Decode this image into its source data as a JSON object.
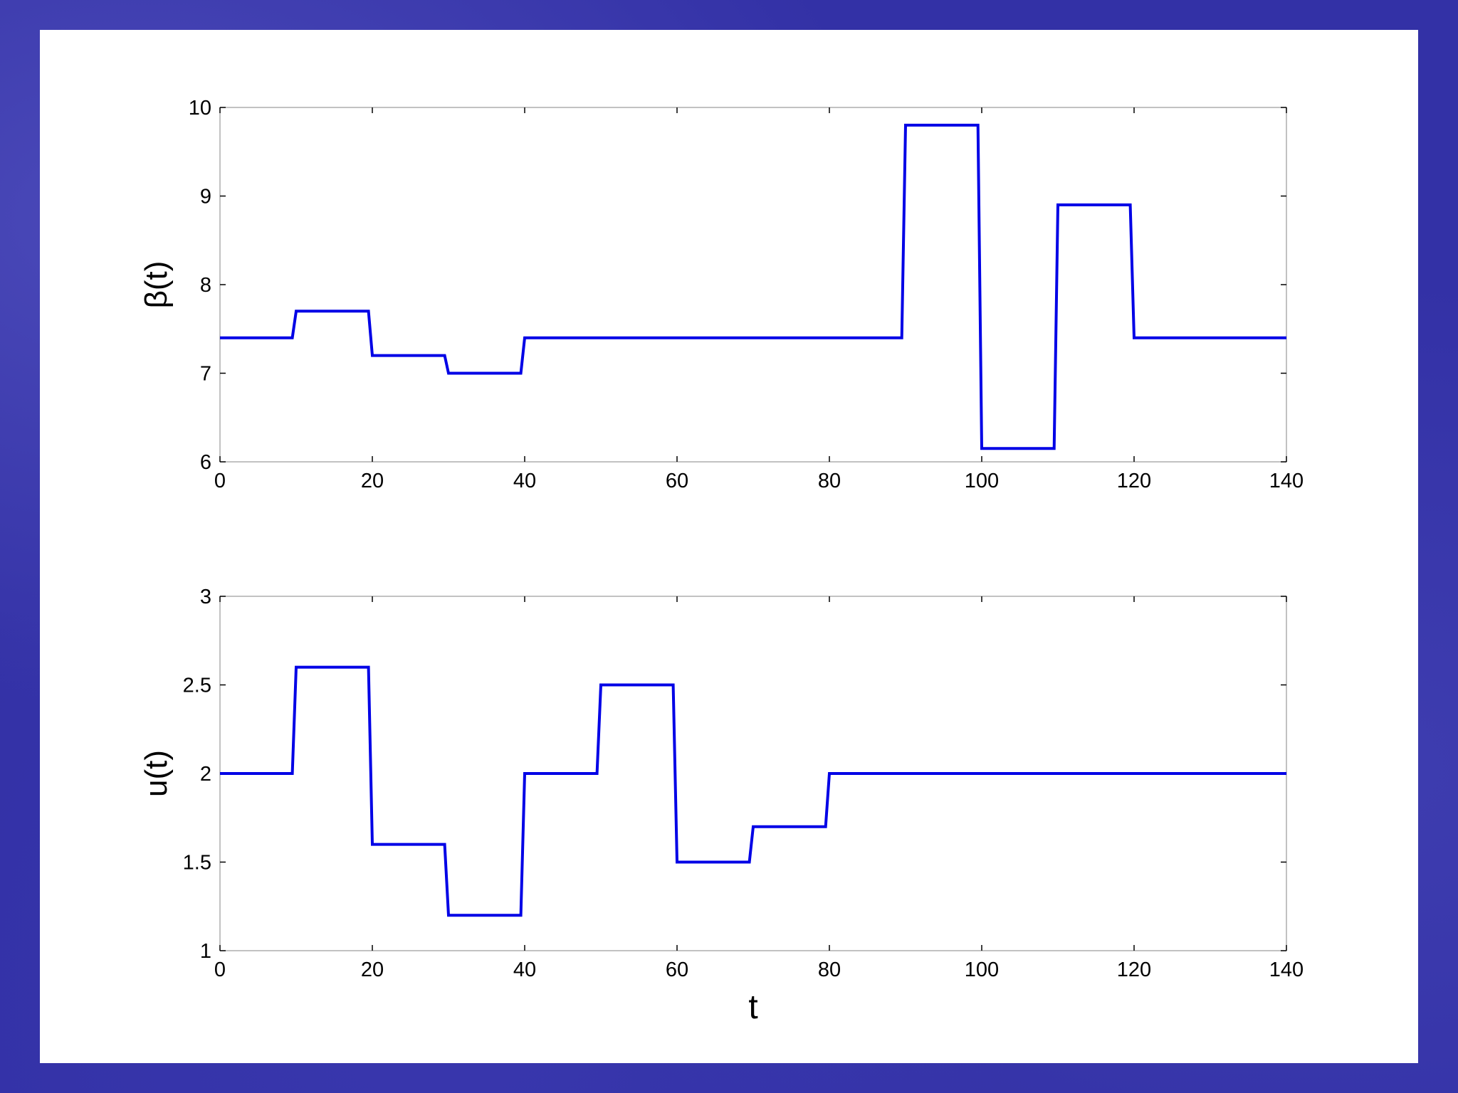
{
  "colors": {
    "background": "#3331a6",
    "panel": "#ffffff",
    "line": "#0000e6",
    "axis": "#999999"
  },
  "chart_data": [
    {
      "type": "line",
      "step": true,
      "title": "",
      "xlabel": "",
      "ylabel": "β(t)",
      "xlim": [
        0,
        140
      ],
      "ylim": [
        6,
        10
      ],
      "xticks": [
        0,
        20,
        40,
        60,
        80,
        100,
        120,
        140
      ],
      "yticks": [
        6,
        7,
        8,
        9,
        10
      ],
      "grid": false,
      "series": [
        {
          "x": [
            0,
            9.5,
            10,
            19.5,
            20,
            29.5,
            30,
            39.5,
            40,
            89.5,
            90,
            99.5,
            100,
            109.5,
            110,
            119.5,
            120,
            140
          ],
          "y": [
            7.4,
            7.4,
            7.7,
            7.7,
            7.2,
            7.2,
            7.0,
            7.0,
            7.4,
            7.4,
            9.8,
            9.8,
            6.15,
            6.15,
            8.9,
            8.9,
            7.4,
            7.4
          ]
        }
      ]
    },
    {
      "type": "line",
      "step": true,
      "title": "",
      "xlabel": "t",
      "ylabel": "u(t)",
      "xlim": [
        0,
        140
      ],
      "ylim": [
        1,
        3
      ],
      "xticks": [
        0,
        20,
        40,
        60,
        80,
        100,
        120,
        140
      ],
      "yticks": [
        1,
        1.5,
        2,
        2.5,
        3
      ],
      "grid": false,
      "series": [
        {
          "x": [
            0,
            9.5,
            10,
            19.5,
            20,
            29.5,
            30,
            39.5,
            40,
            49.5,
            50,
            59.5,
            60,
            69.5,
            70,
            79.5,
            80,
            140
          ],
          "y": [
            2.0,
            2.0,
            2.6,
            2.6,
            1.6,
            1.6,
            1.2,
            1.2,
            2.0,
            2.0,
            2.5,
            2.5,
            1.5,
            1.5,
            1.7,
            1.7,
            2.0,
            2.0
          ]
        }
      ]
    }
  ]
}
